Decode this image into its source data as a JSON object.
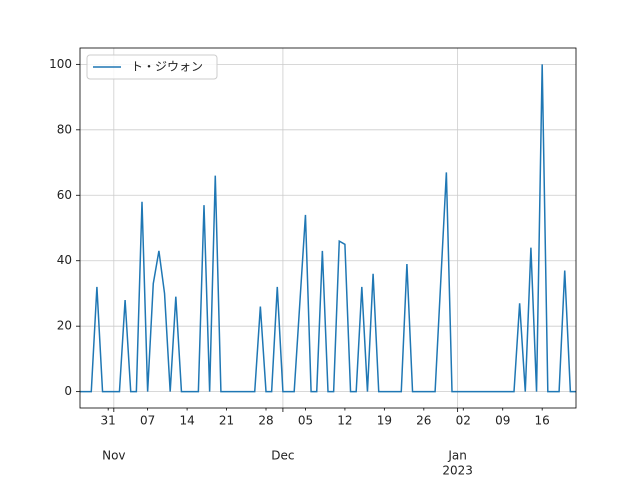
{
  "chart_data": {
    "type": "line",
    "x": [
      "2022-10-26",
      "2022-10-28",
      "2022-10-29",
      "2022-10-30",
      "2022-11-02",
      "2022-11-03",
      "2022-11-04",
      "2022-11-05",
      "2022-11-06",
      "2022-11-07",
      "2022-11-08",
      "2022-11-09",
      "2022-11-10",
      "2022-11-11",
      "2022-11-12",
      "2022-11-13",
      "2022-11-16",
      "2022-11-17",
      "2022-11-18",
      "2022-11-19",
      "2022-11-20",
      "2022-11-26",
      "2022-11-27",
      "2022-11-28",
      "2022-11-29",
      "2022-11-30",
      "2022-12-01",
      "2022-12-03",
      "2022-12-05",
      "2022-12-06",
      "2022-12-07",
      "2022-12-08",
      "2022-12-09",
      "2022-12-10",
      "2022-12-11",
      "2022-12-12",
      "2022-12-13",
      "2022-12-14",
      "2022-12-15",
      "2022-12-16",
      "2022-12-17",
      "2022-12-18",
      "2022-12-22",
      "2022-12-23",
      "2022-12-24",
      "2022-12-28",
      "2022-12-30",
      "2022-12-31",
      "2023-01-11",
      "2023-01-12",
      "2023-01-13",
      "2023-01-14",
      "2023-01-15",
      "2023-01-16",
      "2023-01-17",
      "2023-01-19",
      "2023-01-20",
      "2023-01-21",
      "2023-01-22"
    ],
    "series": [
      {
        "name": "ト・ジウォン",
        "color": "#1f77b4",
        "values": [
          0,
          0,
          32,
          0,
          0,
          28,
          0,
          0,
          58,
          0,
          33,
          43,
          30,
          0,
          29,
          0,
          0,
          57,
          0,
          66,
          0,
          0,
          26,
          0,
          0,
          32,
          0,
          0,
          54,
          0,
          0,
          43,
          0,
          0,
          46,
          45,
          0,
          0,
          32,
          0,
          36,
          0,
          0,
          39,
          0,
          0,
          67,
          0,
          0,
          27,
          0,
          44,
          0,
          100,
          0,
          0,
          37,
          0,
          0
        ]
      }
    ],
    "xlim": [
      "2022-10-26",
      "2023-01-22"
    ],
    "xticks": [
      {
        "value": "2022-11-01",
        "label": "Nov"
      },
      {
        "value": "2022-12-01",
        "label": "Dec"
      },
      {
        "value": "2023-01-01",
        "label": "Jan"
      }
    ],
    "xticks_year": [
      {
        "value": "2023-01-01",
        "label": "2023"
      }
    ],
    "xticks_minor": [
      {
        "value": "2022-10-31",
        "label": "31"
      },
      {
        "value": "2022-11-07",
        "label": "07"
      },
      {
        "value": "2022-11-14",
        "label": "14"
      },
      {
        "value": "2022-11-21",
        "label": "21"
      },
      {
        "value": "2022-11-28",
        "label": "28"
      },
      {
        "value": "2022-12-05",
        "label": "05"
      },
      {
        "value": "2022-12-12",
        "label": "12"
      },
      {
        "value": "2022-12-19",
        "label": "19"
      },
      {
        "value": "2022-12-26",
        "label": "26"
      },
      {
        "value": "2023-01-02",
        "label": "02"
      },
      {
        "value": "2023-01-09",
        "label": "09"
      },
      {
        "value": "2023-01-16",
        "label": "16"
      }
    ],
    "ylim": [
      -5,
      105
    ],
    "yticks": [
      0,
      20,
      40,
      60,
      80,
      100
    ],
    "grid": true,
    "legend": "upper left"
  }
}
